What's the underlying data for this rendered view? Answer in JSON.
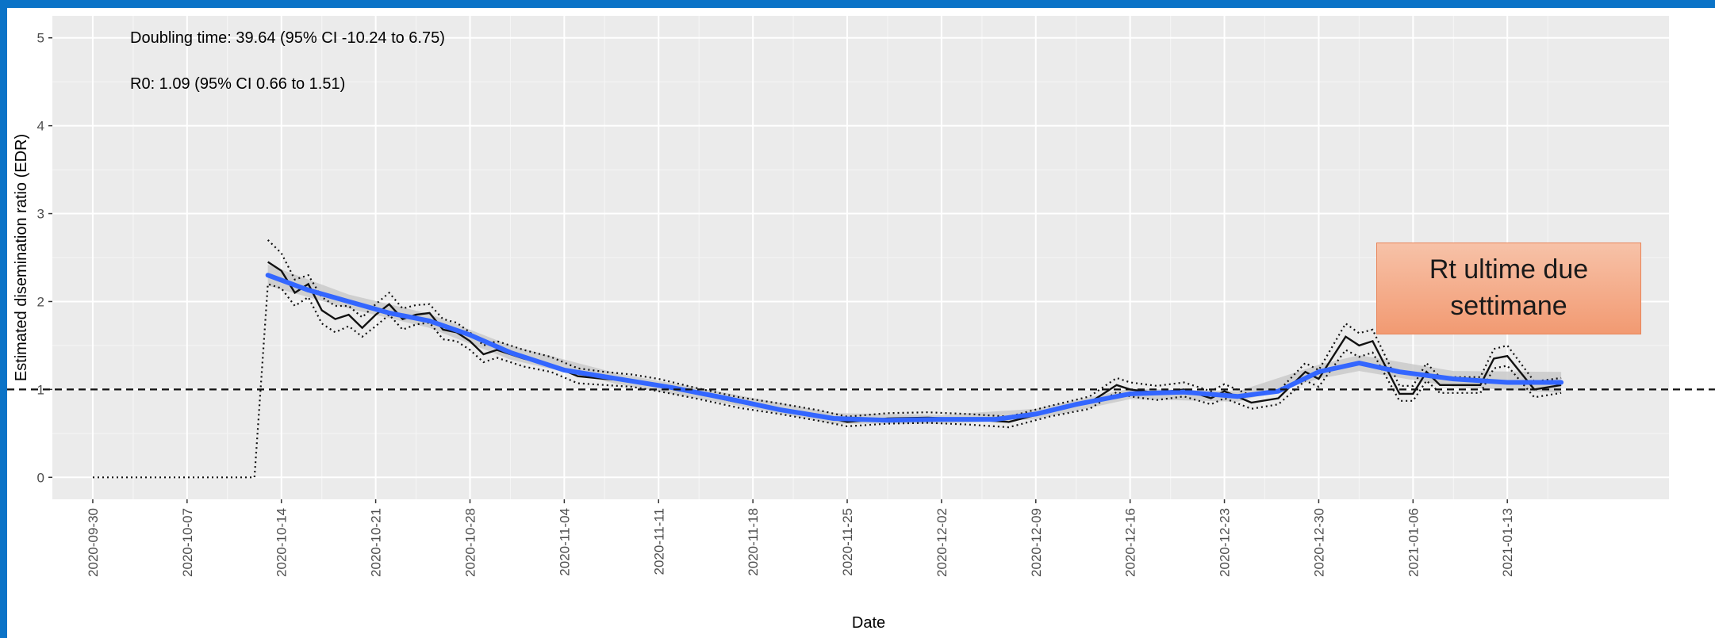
{
  "chart_data": {
    "type": "line",
    "xlabel": "Date",
    "ylabel": "Estimated disemination ratio (EDR)",
    "ylim": [
      0,
      5
    ],
    "y_ticks": [
      "0",
      "1",
      "2",
      "3",
      "4",
      "5"
    ],
    "x_tick_labels": [
      "2020-09-30",
      "2020-10-07",
      "2020-10-14",
      "2020-10-21",
      "2020-10-28",
      "2020-11-04",
      "2020-11-11",
      "2020-11-18",
      "2020-11-25",
      "2020-12-02",
      "2020-12-09",
      "2020-12-16",
      "2020-12-23",
      "2020-12-30",
      "2021-01-06",
      "2021-01-13"
    ],
    "x_range": [
      "2020-09-27",
      "2021-01-25"
    ],
    "grid": true,
    "reference_line": {
      "y": 1,
      "style": "dashed"
    },
    "annotations": [
      "Doubling time: 39.64 (95% CI -10.24 to 6.75)",
      "R0: 1.09 (95% CI 0.66 to 1.51)"
    ],
    "callout": "Rt ultime due\nsettimane",
    "series": [
      {
        "style": "solid-black",
        "points": [
          [
            "2020-10-13",
            2.45
          ],
          [
            "2020-10-14",
            2.35
          ],
          [
            "2020-10-15",
            2.1
          ],
          [
            "2020-10-16",
            2.2
          ],
          [
            "2020-10-17",
            1.9
          ],
          [
            "2020-10-18",
            1.8
          ],
          [
            "2020-10-19",
            1.85
          ],
          [
            "2020-10-20",
            1.7
          ],
          [
            "2020-10-21",
            1.85
          ],
          [
            "2020-10-22",
            1.97
          ],
          [
            "2020-10-23",
            1.8
          ],
          [
            "2020-10-24",
            1.85
          ],
          [
            "2020-10-25",
            1.87
          ],
          [
            "2020-10-26",
            1.68
          ],
          [
            "2020-10-27",
            1.65
          ],
          [
            "2020-10-28",
            1.55
          ],
          [
            "2020-10-29",
            1.4
          ],
          [
            "2020-10-30",
            1.45
          ],
          [
            "2020-11-01",
            1.35
          ],
          [
            "2020-11-03",
            1.28
          ],
          [
            "2020-11-05",
            1.15
          ],
          [
            "2020-11-07",
            1.12
          ],
          [
            "2020-11-09",
            1.1
          ],
          [
            "2020-11-11",
            1.05
          ],
          [
            "2020-11-14",
            0.95
          ],
          [
            "2020-11-17",
            0.85
          ],
          [
            "2020-11-20",
            0.78
          ],
          [
            "2020-11-23",
            0.7
          ],
          [
            "2020-11-25",
            0.63
          ],
          [
            "2020-11-28",
            0.67
          ],
          [
            "2020-12-01",
            0.68
          ],
          [
            "2020-12-04",
            0.66
          ],
          [
            "2020-12-07",
            0.63
          ],
          [
            "2020-12-10",
            0.75
          ],
          [
            "2020-12-13",
            0.85
          ],
          [
            "2020-12-15",
            1.05
          ],
          [
            "2020-12-16",
            1.0
          ],
          [
            "2020-12-18",
            0.96
          ],
          [
            "2020-12-20",
            1.0
          ],
          [
            "2020-12-22",
            0.9
          ],
          [
            "2020-12-23",
            0.98
          ],
          [
            "2020-12-25",
            0.85
          ],
          [
            "2020-12-27",
            0.9
          ],
          [
            "2020-12-29",
            1.2
          ],
          [
            "2020-12-30",
            1.12
          ],
          [
            "2021-01-01",
            1.6
          ],
          [
            "2021-01-02",
            1.5
          ],
          [
            "2021-01-03",
            1.55
          ],
          [
            "2021-01-05",
            0.95
          ],
          [
            "2021-01-06",
            0.95
          ],
          [
            "2021-01-07",
            1.2
          ],
          [
            "2021-01-08",
            1.05
          ],
          [
            "2021-01-09",
            1.05
          ],
          [
            "2021-01-11",
            1.05
          ],
          [
            "2021-01-12",
            1.35
          ],
          [
            "2021-01-13",
            1.38
          ],
          [
            "2021-01-15",
            1.0
          ],
          [
            "2021-01-17",
            1.05
          ]
        ]
      },
      {
        "style": "dotted-upper",
        "points": [
          [
            "2020-10-13",
            2.7
          ],
          [
            "2020-10-14",
            2.55
          ],
          [
            "2020-10-15",
            2.25
          ],
          [
            "2020-10-16",
            2.3
          ],
          [
            "2020-10-17",
            2.05
          ],
          [
            "2020-10-18",
            1.95
          ],
          [
            "2020-10-19",
            1.95
          ],
          [
            "2020-10-20",
            1.82
          ],
          [
            "2020-10-21",
            1.97
          ],
          [
            "2020-10-22",
            2.1
          ],
          [
            "2020-10-23",
            1.92
          ],
          [
            "2020-10-24",
            1.96
          ],
          [
            "2020-10-25",
            1.97
          ],
          [
            "2020-10-26",
            1.8
          ],
          [
            "2020-10-27",
            1.76
          ],
          [
            "2020-10-28",
            1.65
          ],
          [
            "2020-10-29",
            1.5
          ],
          [
            "2020-10-30",
            1.55
          ],
          [
            "2020-11-01",
            1.45
          ],
          [
            "2020-11-03",
            1.37
          ],
          [
            "2020-11-05",
            1.24
          ],
          [
            "2020-11-07",
            1.2
          ],
          [
            "2020-11-09",
            1.17
          ],
          [
            "2020-11-11",
            1.12
          ],
          [
            "2020-11-14",
            1.01
          ],
          [
            "2020-11-17",
            0.91
          ],
          [
            "2020-11-20",
            0.84
          ],
          [
            "2020-11-23",
            0.76
          ],
          [
            "2020-11-25",
            0.69
          ],
          [
            "2020-11-28",
            0.73
          ],
          [
            "2020-12-01",
            0.74
          ],
          [
            "2020-12-04",
            0.72
          ],
          [
            "2020-12-07",
            0.69
          ],
          [
            "2020-12-10",
            0.81
          ],
          [
            "2020-12-13",
            0.92
          ],
          [
            "2020-12-15",
            1.13
          ],
          [
            "2020-12-16",
            1.08
          ],
          [
            "2020-12-18",
            1.04
          ],
          [
            "2020-12-20",
            1.08
          ],
          [
            "2020-12-22",
            0.98
          ],
          [
            "2020-12-23",
            1.06
          ],
          [
            "2020-12-25",
            0.93
          ],
          [
            "2020-12-27",
            0.98
          ],
          [
            "2020-12-29",
            1.3
          ],
          [
            "2020-12-30",
            1.22
          ],
          [
            "2021-01-01",
            1.75
          ],
          [
            "2021-01-02",
            1.64
          ],
          [
            "2021-01-03",
            1.68
          ],
          [
            "2021-01-05",
            1.04
          ],
          [
            "2021-01-06",
            1.04
          ],
          [
            "2021-01-07",
            1.3
          ],
          [
            "2021-01-08",
            1.14
          ],
          [
            "2021-01-09",
            1.14
          ],
          [
            "2021-01-11",
            1.14
          ],
          [
            "2021-01-12",
            1.46
          ],
          [
            "2021-01-13",
            1.5
          ],
          [
            "2021-01-15",
            1.09
          ],
          [
            "2021-01-17",
            1.13
          ]
        ]
      },
      {
        "style": "dotted-lower",
        "points": [
          [
            "2020-09-30",
            0
          ],
          [
            "2020-10-12",
            0
          ],
          [
            "2020-10-13",
            2.2
          ],
          [
            "2020-10-14",
            2.15
          ],
          [
            "2020-10-15",
            1.95
          ],
          [
            "2020-10-16",
            2.05
          ],
          [
            "2020-10-17",
            1.75
          ],
          [
            "2020-10-18",
            1.65
          ],
          [
            "2020-10-19",
            1.72
          ],
          [
            "2020-10-20",
            1.6
          ],
          [
            "2020-10-21",
            1.72
          ],
          [
            "2020-10-22",
            1.85
          ],
          [
            "2020-10-23",
            1.68
          ],
          [
            "2020-10-24",
            1.74
          ],
          [
            "2020-10-25",
            1.76
          ],
          [
            "2020-10-26",
            1.57
          ],
          [
            "2020-10-27",
            1.55
          ],
          [
            "2020-10-28",
            1.45
          ],
          [
            "2020-10-29",
            1.31
          ],
          [
            "2020-10-30",
            1.36
          ],
          [
            "2020-11-01",
            1.26
          ],
          [
            "2020-11-03",
            1.2
          ],
          [
            "2020-11-05",
            1.07
          ],
          [
            "2020-11-07",
            1.05
          ],
          [
            "2020-11-09",
            1.03
          ],
          [
            "2020-11-11",
            0.98
          ],
          [
            "2020-11-14",
            0.89
          ],
          [
            "2020-11-17",
            0.79
          ],
          [
            "2020-11-20",
            0.72
          ],
          [
            "2020-11-23",
            0.64
          ],
          [
            "2020-11-25",
            0.58
          ],
          [
            "2020-11-28",
            0.61
          ],
          [
            "2020-12-01",
            0.62
          ],
          [
            "2020-12-04",
            0.6
          ],
          [
            "2020-12-07",
            0.57
          ],
          [
            "2020-12-10",
            0.69
          ],
          [
            "2020-12-13",
            0.78
          ],
          [
            "2020-12-15",
            0.97
          ],
          [
            "2020-12-16",
            0.92
          ],
          [
            "2020-12-18",
            0.88
          ],
          [
            "2020-12-20",
            0.92
          ],
          [
            "2020-12-22",
            0.83
          ],
          [
            "2020-12-23",
            0.9
          ],
          [
            "2020-12-25",
            0.78
          ],
          [
            "2020-12-27",
            0.83
          ],
          [
            "2020-12-29",
            1.1
          ],
          [
            "2020-12-30",
            1.03
          ],
          [
            "2021-01-01",
            1.45
          ],
          [
            "2021-01-02",
            1.37
          ],
          [
            "2021-01-03",
            1.42
          ],
          [
            "2021-01-05",
            0.87
          ],
          [
            "2021-01-06",
            0.87
          ],
          [
            "2021-01-07",
            1.1
          ],
          [
            "2021-01-08",
            0.96
          ],
          [
            "2021-01-09",
            0.96
          ],
          [
            "2021-01-11",
            0.96
          ],
          [
            "2021-01-12",
            1.24
          ],
          [
            "2021-01-13",
            1.27
          ],
          [
            "2021-01-15",
            0.91
          ],
          [
            "2021-01-17",
            0.96
          ]
        ]
      },
      {
        "style": "smooth-blue",
        "points": [
          [
            "2020-10-13",
            2.3
          ],
          [
            "2020-10-16",
            2.13
          ],
          [
            "2020-10-19",
            2.0
          ],
          [
            "2020-10-22",
            1.87
          ],
          [
            "2020-10-25",
            1.78
          ],
          [
            "2020-10-28",
            1.62
          ],
          [
            "2020-10-31",
            1.42
          ],
          [
            "2020-11-04",
            1.22
          ],
          [
            "2020-11-08",
            1.12
          ],
          [
            "2020-11-12",
            1.02
          ],
          [
            "2020-11-16",
            0.9
          ],
          [
            "2020-11-20",
            0.77
          ],
          [
            "2020-11-24",
            0.67
          ],
          [
            "2020-11-28",
            0.65
          ],
          [
            "2020-12-02",
            0.66
          ],
          [
            "2020-12-06",
            0.66
          ],
          [
            "2020-12-09",
            0.72
          ],
          [
            "2020-12-12",
            0.83
          ],
          [
            "2020-12-16",
            0.95
          ],
          [
            "2020-12-20",
            0.97
          ],
          [
            "2020-12-24",
            0.92
          ],
          [
            "2020-12-27",
            0.98
          ],
          [
            "2020-12-30",
            1.2
          ],
          [
            "2021-01-02",
            1.3
          ],
          [
            "2021-01-05",
            1.2
          ],
          [
            "2021-01-09",
            1.12
          ],
          [
            "2021-01-13",
            1.08
          ],
          [
            "2021-01-17",
            1.08
          ]
        ]
      },
      {
        "style": "ci-band-grey",
        "upper": [
          [
            "2020-10-13",
            2.42
          ],
          [
            "2020-10-19",
            2.08
          ],
          [
            "2020-10-25",
            1.86
          ],
          [
            "2020-10-31",
            1.5
          ],
          [
            "2020-11-08",
            1.18
          ],
          [
            "2020-11-16",
            0.96
          ],
          [
            "2020-11-24",
            0.73
          ],
          [
            "2020-12-02",
            0.71
          ],
          [
            "2020-12-09",
            0.78
          ],
          [
            "2020-12-16",
            1.01
          ],
          [
            "2020-12-24",
            0.98
          ],
          [
            "2020-12-30",
            1.28
          ],
          [
            "2021-01-02",
            1.39
          ],
          [
            "2021-01-09",
            1.21
          ],
          [
            "2021-01-17",
            1.2
          ]
        ],
        "lower": [
          [
            "2020-10-13",
            2.18
          ],
          [
            "2020-10-19",
            1.92
          ],
          [
            "2020-10-25",
            1.7
          ],
          [
            "2020-10-31",
            1.34
          ],
          [
            "2020-11-08",
            1.06
          ],
          [
            "2020-11-16",
            0.84
          ],
          [
            "2020-11-24",
            0.61
          ],
          [
            "2020-12-02",
            0.61
          ],
          [
            "2020-12-09",
            0.66
          ],
          [
            "2020-12-16",
            0.89
          ],
          [
            "2020-12-24",
            0.86
          ],
          [
            "2020-12-30",
            1.12
          ],
          [
            "2021-01-02",
            1.21
          ],
          [
            "2021-01-09",
            1.03
          ],
          [
            "2021-01-17",
            0.96
          ]
        ]
      }
    ]
  }
}
